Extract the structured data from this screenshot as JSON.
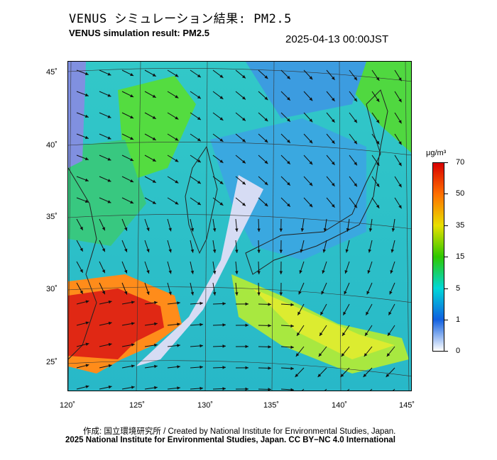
{
  "header": {
    "title_jp": "VENUS シミュレーション結果: PM2.5",
    "title_en": "VENUS simulation result: PM2.5",
    "timestamp": "2025-04-13 00:00JST"
  },
  "map": {
    "lon_labels": [
      "120˚",
      "125˚",
      "130˚",
      "135˚",
      "140˚",
      "145˚"
    ],
    "lat_labels": [
      "45˚",
      "40˚",
      "35˚",
      "30˚",
      "25˚"
    ],
    "lon_range": [
      120,
      145
    ],
    "lat_range": [
      23,
      46
    ],
    "variable": "PM2.5 concentration with wind vectors"
  },
  "colorbar": {
    "unit": "μg/m³",
    "labels": [
      "70",
      "50",
      "35",
      "15",
      "5",
      "1",
      "0"
    ],
    "colors": [
      "#d80000",
      "#ff7000",
      "#e8e000",
      "#2ec800",
      "#00d8d8",
      "#1060e0",
      "#ffffff"
    ]
  },
  "footer": {
    "credit_line": "作成: 国立環境研究所 / Created by National Institute for Environmental Studies, Japan.",
    "copyright_line": "2025 National Institute for Environmental Studies, Japan. CC BY−NC 4.0 International"
  }
}
